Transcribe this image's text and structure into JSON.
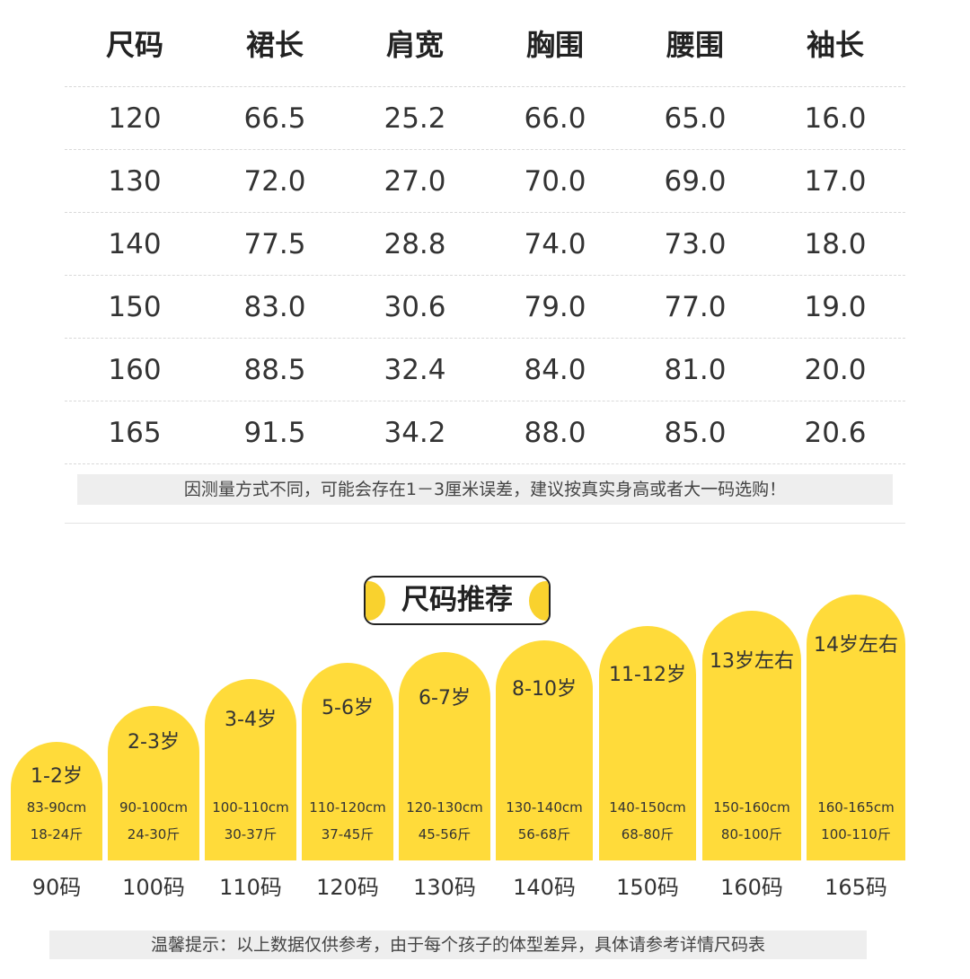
{
  "table": {
    "headers": [
      "尺码",
      "裙长",
      "肩宽",
      "胸围",
      "腰围",
      "袖长"
    ],
    "rows": [
      [
        "120",
        "66.5",
        "25.2",
        "66.0",
        "65.0",
        "16.0"
      ],
      [
        "130",
        "72.0",
        "27.0",
        "70.0",
        "69.0",
        "17.0"
      ],
      [
        "140",
        "77.5",
        "28.8",
        "74.0",
        "73.0",
        "18.0"
      ],
      [
        "150",
        "83.0",
        "30.6",
        "79.0",
        "77.0",
        "19.0"
      ],
      [
        "160",
        "88.5",
        "32.4",
        "84.0",
        "81.0",
        "20.0"
      ],
      [
        "165",
        "91.5",
        "34.2",
        "88.0",
        "85.0",
        "20.6"
      ]
    ]
  },
  "notes": {
    "measure": "因测量方式不同，可能会存在1－3厘米误差，建议按真实身高或者大一码选购！",
    "tip": "温馨提示：以上数据仅供参考，由于每个孩子的体型差异，具体请参考详情尺码表"
  },
  "recommend": {
    "title": "尺码推荐",
    "items": [
      {
        "age": "1-2岁",
        "height": "83-90cm",
        "weight": "18-24斤",
        "size": "90码"
      },
      {
        "age": "2-3岁",
        "height": "90-100cm",
        "weight": "24-30斤",
        "size": "100码"
      },
      {
        "age": "3-4岁",
        "height": "100-110cm",
        "weight": "30-37斤",
        "size": "110码"
      },
      {
        "age": "5-6岁",
        "height": "110-120cm",
        "weight": "37-45斤",
        "size": "120码"
      },
      {
        "age": "6-7岁",
        "height": "120-130cm",
        "weight": "45-56斤",
        "size": "130码"
      },
      {
        "age": "8-10岁",
        "height": "130-140cm",
        "weight": "56-68斤",
        "size": "140码"
      },
      {
        "age": "11-12岁",
        "height": "140-150cm",
        "weight": "68-80斤",
        "size": "150码"
      },
      {
        "age": "13岁左右",
        "height": "150-160cm",
        "weight": "80-100斤",
        "size": "160码"
      },
      {
        "age": "14岁左右",
        "height": "160-165cm",
        "weight": "100-110斤",
        "size": "165码"
      }
    ]
  },
  "colors": {
    "accent": "#ffdb3a",
    "note_bg": "#eeeeee"
  }
}
